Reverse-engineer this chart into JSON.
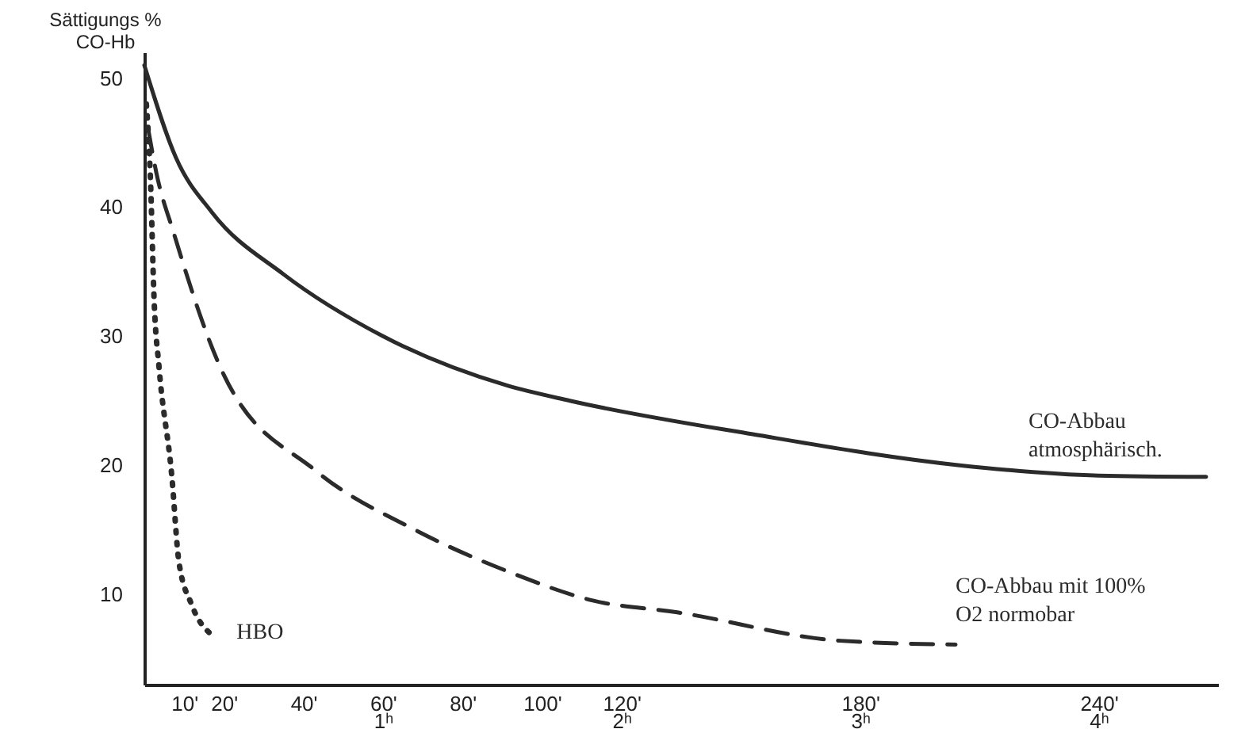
{
  "chart_data": {
    "type": "line",
    "ylabel": "Sättigungs %\nCO-Hb",
    "xlim": [
      0,
      270
    ],
    "ylim": [
      3,
      52
    ],
    "xticks": [
      {
        "value": 10,
        "label": "10'"
      },
      {
        "value": 20,
        "label": "20'"
      },
      {
        "value": 40,
        "label": "40'"
      },
      {
        "value": 60,
        "label": "60'\n1ʰ"
      },
      {
        "value": 80,
        "label": "80'"
      },
      {
        "value": 100,
        "label": "100'"
      },
      {
        "value": 120,
        "label": "120'\n2ʰ"
      },
      {
        "value": 180,
        "label": "180'\n3ʰ"
      },
      {
        "value": 240,
        "label": "240'\n4ʰ"
      }
    ],
    "yticks": [
      10,
      20,
      30,
      40,
      50
    ],
    "grid": false,
    "legend": false,
    "marker": "none",
    "series": [
      {
        "name": "CO-Abbau\natmosphärisch.",
        "color": "#2b2b2b",
        "line_style": "solid",
        "x": [
          0,
          8,
          17,
          35,
          60,
          91,
          107,
          153,
          205,
          240,
          267
        ],
        "values": [
          51,
          43.8,
          39.6,
          34.8,
          30,
          26.2,
          25,
          22.4,
          20,
          19.2,
          19.1
        ]
      },
      {
        "name": "CO-Abbau mit 100%\nO2 normobar",
        "color": "#2b2b2b",
        "line_style": "dashed",
        "x": [
          1,
          3,
          7.5,
          20,
          43,
          68,
          92,
          113,
          134,
          175,
          204
        ],
        "values": [
          46,
          42.7,
          37.9,
          27,
          19.6,
          15,
          11.7,
          9.5,
          8.6,
          6.4,
          6.1
        ]
      },
      {
        "name": "HBO",
        "color": "#2b2b2b",
        "line_style": "dotted",
        "x": [
          0.5,
          1.5,
          2.5,
          3.7,
          6.9,
          8.7,
          11.9,
          17.6
        ],
        "values": [
          48,
          42.5,
          32.5,
          27.6,
          19.2,
          12.5,
          9.2,
          6.7
        ]
      }
    ]
  }
}
